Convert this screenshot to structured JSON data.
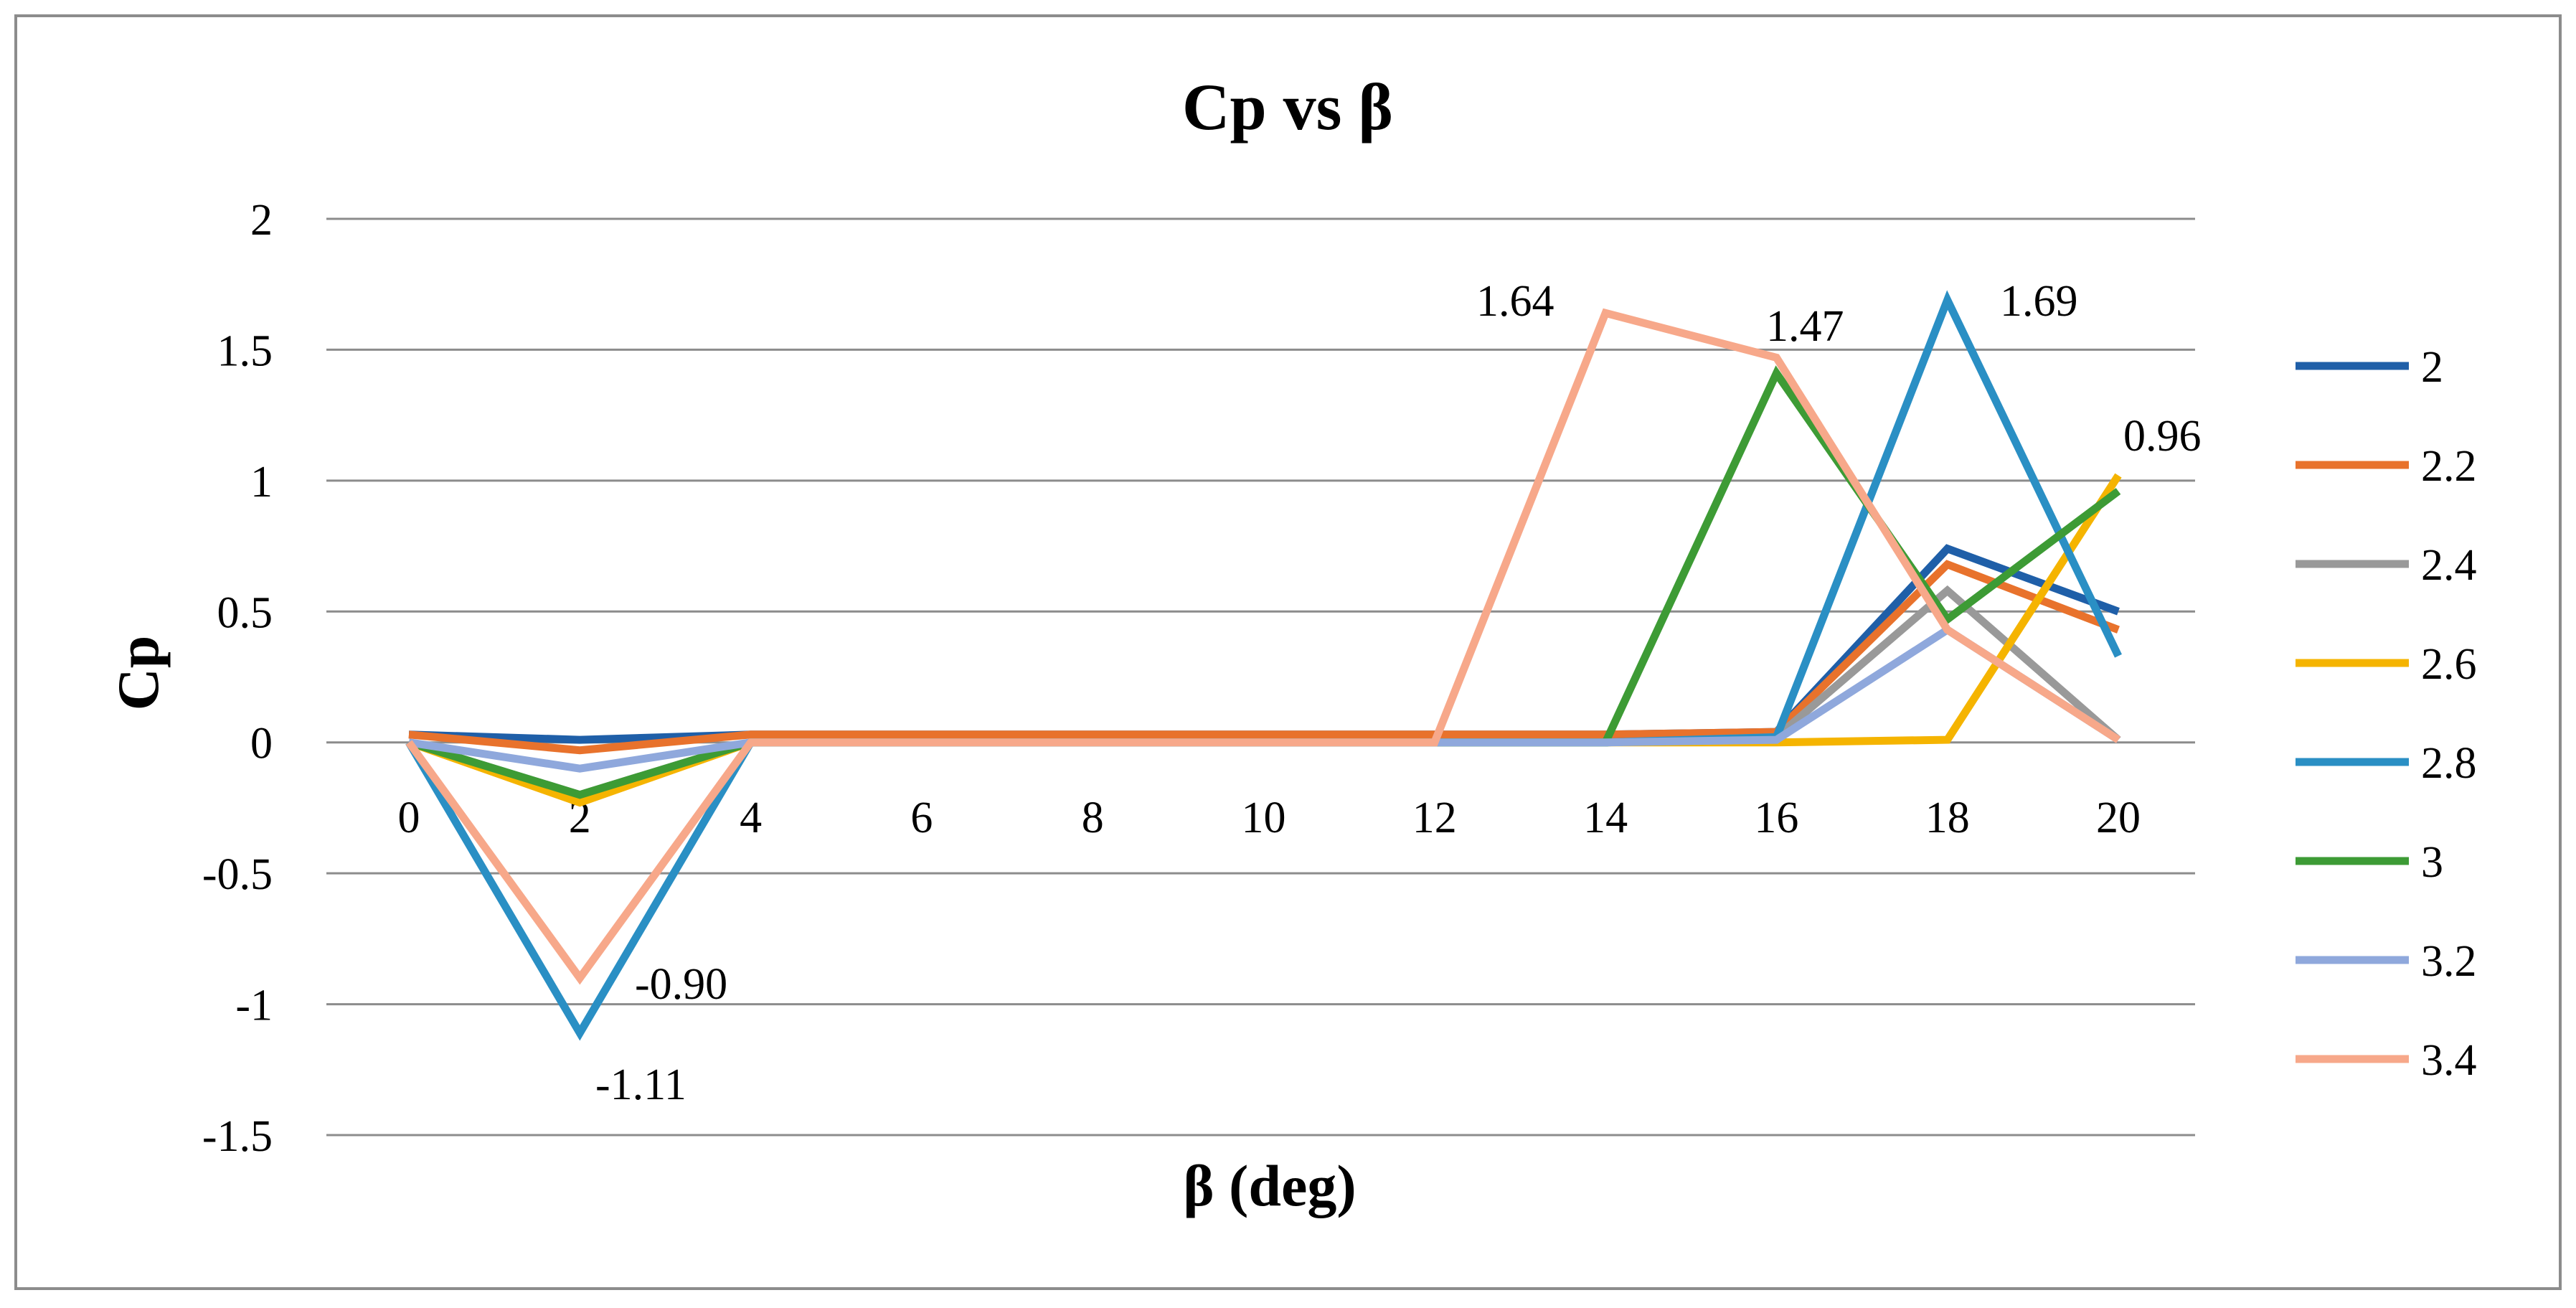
{
  "chart_data": {
    "type": "line",
    "title": "Cp vs β",
    "xlabel": "β (deg)",
    "ylabel": "Cp",
    "x": [
      0,
      2,
      4,
      6,
      8,
      10,
      12,
      14,
      16,
      18,
      20
    ],
    "xticks": [
      "0",
      "2",
      "4",
      "6",
      "8",
      "10",
      "12",
      "14",
      "16",
      "18",
      "20"
    ],
    "ylim": [
      -1.5,
      2
    ],
    "yticks": [
      "2",
      "1.5",
      "1",
      "0.5",
      "0",
      "-0.5",
      "-1",
      "-1.5"
    ],
    "ytick_values": [
      2,
      1.5,
      1,
      0.5,
      0,
      -0.5,
      -1,
      -1.5
    ],
    "grid": true,
    "legend_position": "right",
    "series": [
      {
        "name": "2",
        "color": "#1f5fa8",
        "values": [
          0.03,
          0.01,
          0.03,
          0.03,
          0.03,
          0.03,
          0.03,
          0.03,
          0.04,
          0.74,
          0.5
        ]
      },
      {
        "name": "2.2",
        "color": "#e8722c",
        "values": [
          0.03,
          -0.03,
          0.03,
          0.03,
          0.03,
          0.03,
          0.03,
          0.03,
          0.04,
          0.68,
          0.43
        ]
      },
      {
        "name": "2.4",
        "color": "#999999",
        "values": [
          0.0,
          -0.2,
          0.0,
          0.0,
          0.0,
          0.0,
          0.0,
          0.0,
          0.02,
          0.58,
          0.01
        ]
      },
      {
        "name": "2.6",
        "color": "#f5b400",
        "values": [
          0.0,
          -0.23,
          0.0,
          0.0,
          0.0,
          0.0,
          0.0,
          0.0,
          0.0,
          0.01,
          1.02
        ]
      },
      {
        "name": "2.8",
        "color": "#2a8fc4",
        "values": [
          0.0,
          -1.11,
          0.0,
          0.0,
          0.0,
          0.0,
          0.0,
          0.0,
          0.02,
          1.69,
          0.33
        ]
      },
      {
        "name": "3",
        "color": "#3d9b35",
        "values": [
          0.0,
          -0.2,
          0.0,
          0.0,
          0.0,
          0.0,
          0.0,
          0.0,
          1.41,
          0.47,
          0.96
        ]
      },
      {
        "name": "3.2",
        "color": "#8fa8dc",
        "values": [
          0.0,
          -0.1,
          0.0,
          0.0,
          0.0,
          0.0,
          0.0,
          0.0,
          0.01,
          0.43,
          0.01
        ]
      },
      {
        "name": "3.4",
        "color": "#f7a88a",
        "values": [
          0.0,
          -0.9,
          0.0,
          0.0,
          0.0,
          0.0,
          0.0,
          1.64,
          1.47,
          0.43,
          0.01
        ]
      }
    ],
    "annotations": [
      {
        "text": "-0.90",
        "x": 2,
        "y": -0.9,
        "series": "3.4"
      },
      {
        "text": "-1.11",
        "x": 2,
        "y": -1.11,
        "series": "2.8"
      },
      {
        "text": "1.64",
        "x": 14,
        "y": 1.64,
        "series": "3.4"
      },
      {
        "text": "1.47",
        "x": 16,
        "y": 1.47,
        "series": "3.4"
      },
      {
        "text": "1.69",
        "x": 18,
        "y": 1.69,
        "series": "2.8"
      },
      {
        "text": "0.96",
        "x": 20,
        "y": 0.96,
        "series": "3"
      }
    ]
  }
}
